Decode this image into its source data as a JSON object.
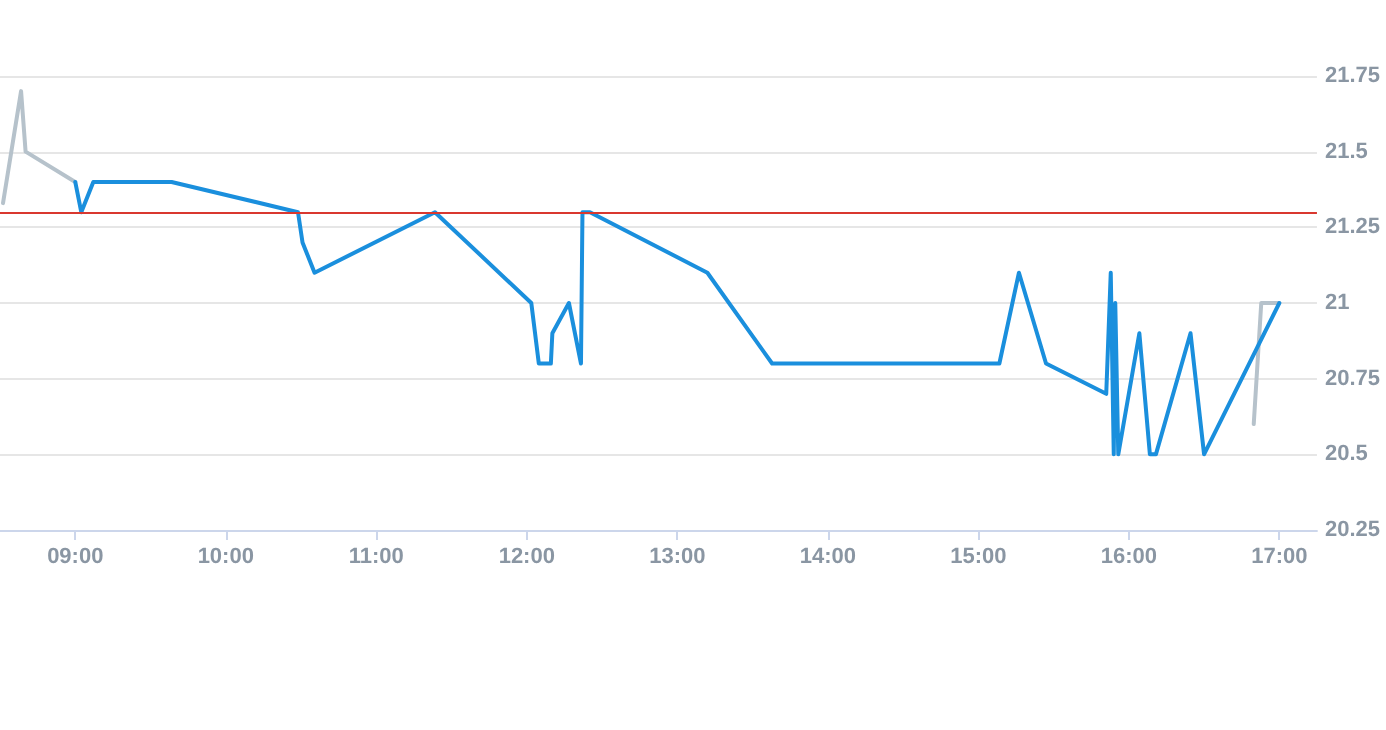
{
  "chart_data": {
    "type": "line",
    "series": [
      {
        "color": "#b6c2cb",
        "x": [
          8.52,
          8.64,
          8.67,
          9.0,
          null,
          16.83,
          16.88,
          17.0
        ],
        "values": [
          21.33,
          21.7,
          21.5,
          21.4,
          null,
          20.6,
          21.0,
          21.0
        ]
      },
      {
        "color": "#1a8fdd",
        "x": [
          9.0,
          9.04,
          9.12,
          9.64,
          10.48,
          10.51,
          10.59,
          11.39,
          12.03,
          12.08,
          12.16,
          12.17,
          12.28,
          12.36,
          12.37,
          12.42,
          13.2,
          13.63,
          15.14,
          15.27,
          15.45,
          15.85,
          15.88,
          15.9,
          15.91,
          15.93,
          16.07,
          16.14,
          16.18,
          16.41,
          16.5,
          17.0
        ],
        "values": [
          21.4,
          21.3,
          21.4,
          21.4,
          21.3,
          21.2,
          21.1,
          21.3,
          21.0,
          20.8,
          20.8,
          20.9,
          21.0,
          20.8,
          21.3,
          21.3,
          21.1,
          20.8,
          20.8,
          21.1,
          20.8,
          20.7,
          21.1,
          20.5,
          21.0,
          20.5,
          20.9,
          20.5,
          20.5,
          20.9,
          20.5,
          21.0
        ]
      }
    ],
    "xlim": [
      8.5,
      17.25
    ],
    "xticks": [
      {
        "value": 9,
        "label": "09:00"
      },
      {
        "value": 10,
        "label": "10:00"
      },
      {
        "value": 11,
        "label": "11:00"
      },
      {
        "value": 12,
        "label": "12:00"
      },
      {
        "value": 13,
        "label": "13:00"
      },
      {
        "value": 14,
        "label": "14:00"
      },
      {
        "value": 15,
        "label": "15:00"
      },
      {
        "value": 16,
        "label": "16:00"
      },
      {
        "value": 17,
        "label": "17:00"
      }
    ],
    "ylim": [
      20.25,
      21.75
    ],
    "yticks": [
      20.25,
      20.5,
      20.75,
      21,
      21.25,
      21.5,
      21.75
    ],
    "ref_lines": [
      {
        "axis": "y",
        "value": 21.3,
        "color": "#d9382f"
      }
    ],
    "grid": "y",
    "marker": "none",
    "line_style": "solid"
  }
}
